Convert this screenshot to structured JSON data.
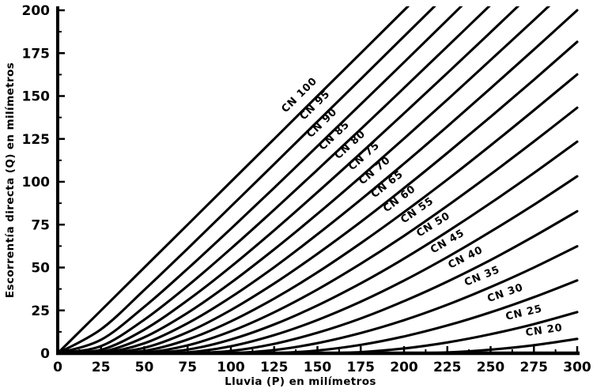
{
  "colors": {
    "ink": "#000000",
    "paper": "#ffffff"
  },
  "chart_data": {
    "type": "line",
    "title": "",
    "xlabel": "Lluvia (P) en milímetros",
    "ylabel": "Escorrentía directa (Q) en milímetros",
    "xlim": [
      0,
      300
    ],
    "ylim": [
      0,
      200
    ],
    "grid": false,
    "legend_position": "labels-on-curves",
    "x_major_ticks": [
      0,
      25,
      50,
      75,
      100,
      125,
      150,
      175,
      200,
      225,
      250,
      275,
      300
    ],
    "y_major_ticks": [
      0,
      25,
      50,
      75,
      100,
      125,
      150,
      175,
      200
    ],
    "minor_tick_step": 12.5,
    "x": [
      0,
      25,
      50,
      75,
      100,
      125,
      150,
      175,
      200,
      225,
      250,
      275,
      300
    ],
    "series": [
      {
        "name": "CN 100",
        "cn": 100,
        "label_p": 145,
        "values": [
          0,
          25,
          50,
          75,
          100,
          125,
          150,
          175,
          200,
          225,
          250,
          275,
          300
        ]
      },
      {
        "name": "CN 95",
        "cn": 95,
        "label_p": 154,
        "values": [
          0,
          14,
          36.9,
          61,
          85.6,
          110.3,
          135.1,
          159.9,
          184.8,
          209.7,
          234.6,
          259.6,
          284.5
        ]
      },
      {
        "name": "CN 90",
        "cn": 90,
        "label_p": 158,
        "values": [
          0,
          7.9,
          27.1,
          49.3,
          72.6,
          96.5,
          120.8,
          145.2,
          169.7,
          194.4,
          219.1,
          243.8,
          268.6
        ]
      },
      {
        "name": "CN 85",
        "cn": 85,
        "label_p": 165,
        "values": [
          0,
          4.2,
          19.6,
          39.3,
          61,
          83.7,
          107,
          130.7,
          154.7,
          178.9,
          203.2,
          227.7,
          252.2
        ]
      },
      {
        "name": "CN 80",
        "cn": 80,
        "label_p": 174,
        "values": [
          0,
          2,
          13.8,
          30.9,
          50.5,
          71.7,
          93.9,
          116.7,
          139.9,
          163.4,
          187.2,
          211.2,
          235.3
        ]
      },
      {
        "name": "CN 75",
        "cn": 75,
        "label_p": 182,
        "values": [
          0,
          0.7,
          9.3,
          23.6,
          41.1,
          60.6,
          81.3,
          102.9,
          125.2,
          147.9,
          171,
          194.3,
          217.9
        ]
      },
      {
        "name": "CN 70",
        "cn": 70,
        "label_p": 188,
        "values": [
          0,
          0.1,
          5.8,
          17.5,
          32.7,
          50.2,
          69.4,
          89.6,
          110.6,
          132.3,
          154.5,
          177.1,
          200
        ]
      },
      {
        "name": "CN 65",
        "cn": 65,
        "label_p": 195,
        "values": [
          0,
          0,
          3.2,
          12.3,
          25.2,
          40.7,
          58,
          76.6,
          96.3,
          116.8,
          137.9,
          159.5,
          181.6
        ]
      },
      {
        "name": "CN 60",
        "cn": 60,
        "label_p": 202,
        "values": [
          0,
          0,
          1.4,
          8,
          18.6,
          31.9,
          47.2,
          64.2,
          82.3,
          101.3,
          121.2,
          141.7,
          162.6
        ]
      },
      {
        "name": "CN 55",
        "cn": 55,
        "label_p": 212,
        "values": [
          0,
          0,
          0.3,
          4.6,
          12.8,
          23.9,
          37.2,
          52.2,
          68.5,
          86,
          104.4,
          123.5,
          143.2
        ]
      },
      {
        "name": "CN 50",
        "cn": 50,
        "label_p": 221,
        "values": [
          0,
          0,
          0,
          2.1,
          8,
          16.8,
          27.9,
          40.8,
          55.2,
          70.9,
          87.6,
          105.1,
          123.4
        ]
      },
      {
        "name": "CN 45",
        "cn": 45,
        "label_p": 229,
        "values": [
          0,
          0,
          0,
          0.5,
          4.1,
          10.6,
          19.4,
          30.1,
          42.4,
          56.1,
          70.9,
          86.6,
          103.2
        ]
      },
      {
        "name": "CN 40",
        "cn": 40,
        "label_p": 239,
        "values": [
          0,
          0,
          0,
          0,
          1.4,
          5.5,
          12,
          20.3,
          30.4,
          41.8,
          54.4,
          68.2,
          82.8
        ]
      },
      {
        "name": "CN 35",
        "cn": 35,
        "label_p": 248,
        "values": [
          0,
          0,
          0,
          0,
          0.1,
          1.9,
          5.9,
          11.8,
          19.3,
          28.3,
          38.6,
          50,
          62.4
        ]
      },
      {
        "name": "CN 30",
        "cn": 30,
        "label_p": 261,
        "values": [
          0,
          0,
          0,
          0,
          0,
          0.1,
          1.6,
          4.9,
          9.8,
          16.2,
          23.9,
          32.7,
          42.5
        ]
      },
      {
        "name": "CN 25",
        "cn": 25,
        "label_p": 271,
        "values": [
          0,
          0,
          0,
          0,
          0,
          0,
          0,
          0.7,
          2.8,
          6.3,
          11.1,
          17,
          24
        ]
      },
      {
        "name": "CN 20",
        "cn": 20,
        "label_p": 282,
        "values": [
          0,
          0,
          0,
          0,
          0,
          0,
          0,
          0,
          0,
          0.5,
          2.1,
          4.7,
          8.4
        ]
      }
    ]
  }
}
